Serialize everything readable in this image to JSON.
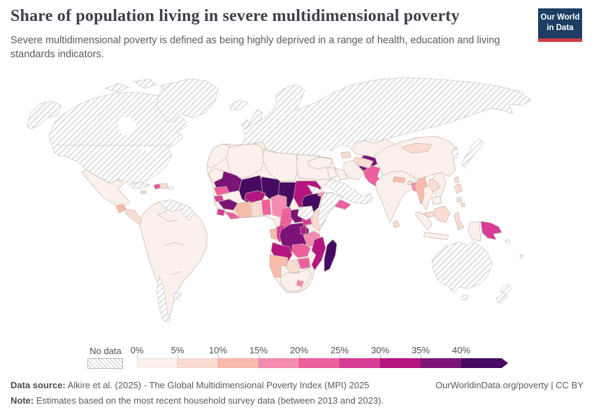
{
  "header": {
    "title": "Share of population living in severe multidimensional poverty",
    "subtitle": "Severe multidimensional poverty is defined as being highly deprived in a range of health, education and living standards indicators.",
    "logo_line1": "Our World",
    "logo_line2": "in Data",
    "logo_bg": "#1d3d63",
    "logo_accent": "#cf3e41"
  },
  "legend": {
    "no_data_label": "No data",
    "tick_labels": [
      "0%",
      "5%",
      "10%",
      "15%",
      "20%",
      "25%",
      "30%",
      "35%",
      "40%"
    ],
    "colors": [
      "#fcf0ec",
      "#fadcd3",
      "#f8bcab",
      "#f48bb0",
      "#ee5f9e",
      "#d63d96",
      "#b5157f",
      "#7c1478",
      "#470a63"
    ]
  },
  "footer": {
    "source_label": "Data source:",
    "source_text": " Alkire et al. (2025) - The Global Multidimensional Poverty Index (MPI) 2025",
    "right_text": "OurWorldinData.org/poverty | CC BY",
    "note_label": "Note:",
    "note_text": " Estimates based on the most recent household survey data (between 2013 and 2023)."
  },
  "map_data": {
    "type": "choropleth-world-map",
    "metric": "Share of population living in severe multidimensional poverty",
    "bins": [
      "0-5%",
      "5-10%",
      "10-15%",
      "15-20%",
      "20-25%",
      "25-30%",
      "30-35%",
      "35-40%",
      "40%+"
    ],
    "no_data_style": "diagonal-hatch"
  },
  "map": {
    "countries": {
      "canada-usa": "no-data",
      "alaska": "no-data",
      "arctic-1": "no-data",
      "arctic-2": "no-data",
      "arctic-3": "no-data",
      "greenland": "no-data",
      "iceland": "no-data",
      "uk": "no-data",
      "ireland": "no-data",
      "europe-russia": "no-data",
      "italy": "no-data",
      "japan": "no-data",
      "korea": "no-data",
      "saudi-arabia": "no-data",
      "australia": "no-data",
      "tasmania": "no-data",
      "new-zealand-north": "no-data",
      "new-zealand-south": "no-data",
      "somalia": "no-data",
      "eritrea": "no-data",
      "south-sudan": "no-data",
      "venezuela": "no-data",
      "guyanas": "no-data",
      "chile": "no-data",
      "uruguay": "no-data",
      "cuba": "no-data",
      "puerto-rico": "no-data",
      "solomon-islands": "no-data",
      "fiji": "no-data",
      "africa-base": 0,
      "mexico": 0,
      "south-america": 0,
      "morocco": 0,
      "western-sahara": 0,
      "algeria": 0,
      "tunisia": 0,
      "libya": 0,
      "egypt": 0,
      "south-africa": 0,
      "turkey": 0,
      "levant": 0,
      "iraq": 0,
      "iran": 0,
      "india": 0,
      "china": 0,
      "kazakhstan": 0,
      "thailand": 0,
      "vietnam": 0,
      "cambodia": 0,
      "sumatra": 0,
      "java": 0,
      "west-papua": 0,
      "central-america": 1,
      "dominican-republic": 1,
      "jamaica": 1,
      "ghana": 1,
      "kenya": 1,
      "botswana": 1,
      "caucasus": 1,
      "uzbekistan-turkmenistan": 1,
      "kyrgyzstan-tajikistan": 1,
      "mongolia": 1,
      "laos": 1,
      "malaysia": 1,
      "taiwan": 1,
      "philippines": 1,
      "philippines-2": 1,
      "philippines-3": 1,
      "borneo": 1,
      "sulawesi": 1,
      "sri-lanka": 1,
      "bhutan": 1,
      "guatemala": 2,
      "cote-divoire": 2,
      "gabon": 2,
      "namibia": 2,
      "nepal": 2,
      "myanmar": 2,
      "nigeria": 3,
      "tanzania": 3,
      "malawi": 3,
      "bangladesh": 3,
      "lesotho": 3,
      "djibouti": 3,
      "senegal": 4,
      "liberia": 4,
      "togo-benin": 4,
      "cameroon": 4,
      "zambia": 4,
      "zimbabwe": 4,
      "yemen": 4,
      "pakistan": 4,
      "haiti": 4,
      "guinea-bissau": 5,
      "sierra-leone": 5,
      "congo": 5,
      "uganda": 5,
      "papua-new-guinea": 5,
      "burkina-faso": 6,
      "sudan": 6,
      "rwanda-burundi": 6,
      "angola": 6,
      "mozambique": 6,
      "mauritania": 7,
      "guinea": 7,
      "central-african-republic": 7,
      "drc": 7,
      "afghanistan": 7,
      "mali": 8,
      "niger": 8,
      "chad": 8,
      "ethiopia": 8,
      "madagascar": 8
    }
  }
}
